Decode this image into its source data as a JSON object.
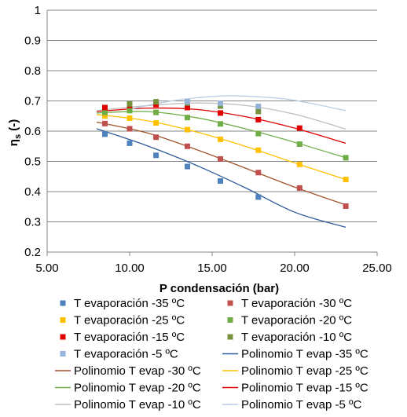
{
  "chart_data": {
    "type": "scatter",
    "xlabel": "P condensación (bar)",
    "ylabel_main": "η",
    "ylabel_sub": "s",
    "ylabel_suffix": " (-)",
    "xlim": [
      5,
      25
    ],
    "ylim": [
      0.2,
      1.0
    ],
    "x_ticks": [
      "5.00",
      "10.00",
      "15.00",
      "20.00",
      "25.00"
    ],
    "y_ticks": [
      "0.2",
      "0.3",
      "0.4",
      "0.5",
      "0.6",
      "0.7",
      "0.8",
      "0.9",
      "1"
    ],
    "grid": true,
    "legend_position": "bottom",
    "series": [
      {
        "name": "T evaporación -35 ºC",
        "marker": "square",
        "color": "#4F81BD",
        "x": [
          8.5,
          10.0,
          11.6,
          13.5,
          15.5,
          17.8
        ],
        "y": [
          0.59,
          0.56,
          0.52,
          0.483,
          0.435,
          0.382
        ]
      },
      {
        "name": "T evaporación -30 ºC",
        "marker": "square",
        "color": "#C0504D",
        "x": [
          8.5,
          10.0,
          11.6,
          13.5,
          15.5,
          17.8,
          20.3,
          23.1
        ],
        "y": [
          0.625,
          0.608,
          0.58,
          0.55,
          0.508,
          0.463,
          0.412,
          0.352
        ]
      },
      {
        "name": "T evaporación -25 ºC",
        "marker": "square",
        "color": "#FFC000",
        "x": [
          8.5,
          10.0,
          11.6,
          13.5,
          15.5,
          17.8,
          20.3,
          23.1
        ],
        "y": [
          0.65,
          0.643,
          0.627,
          0.605,
          0.573,
          0.537,
          0.49,
          0.44
        ]
      },
      {
        "name": "T evaporación -20 ºC",
        "marker": "square",
        "color": "#70AD47",
        "x": [
          8.5,
          10.0,
          11.6,
          13.5,
          15.5,
          17.8,
          20.3,
          23.1
        ],
        "y": [
          0.662,
          0.668,
          0.662,
          0.645,
          0.624,
          0.592,
          0.557,
          0.512
        ]
      },
      {
        "name": "T evaporación -15 ºC",
        "marker": "square",
        "color": "#E00000",
        "x": [
          8.5,
          10.0,
          11.6,
          13.5,
          15.5,
          17.8,
          20.3
        ],
        "y": [
          0.678,
          0.685,
          0.688,
          0.678,
          0.66,
          0.638,
          0.61
        ]
      },
      {
        "name": "T evaporación -10 ºC",
        "marker": "square",
        "color": "#77933C",
        "x": [
          10.0,
          11.6,
          13.5,
          15.5,
          17.8
        ],
        "y": [
          0.69,
          0.697,
          0.693,
          0.683,
          0.665
        ]
      },
      {
        "name": "T evaporación -5 ºC",
        "marker": "square",
        "color": "#95B3D7",
        "x": [
          13.5,
          15.5,
          17.8
        ],
        "y": [
          0.697,
          0.692,
          0.682
        ]
      },
      {
        "name": "Polinomio T evap -35 ºC",
        "marker": "line",
        "color": "#2E5C9A",
        "x": [
          8.0,
          11.0,
          14.0,
          17.0,
          20.0,
          23.1
        ],
        "y": [
          0.608,
          0.553,
          0.488,
          0.413,
          0.332,
          0.282
        ]
      },
      {
        "name": "Polinomio T evap -30 ºC",
        "marker": "line",
        "color": "#A0522D",
        "x": [
          8.0,
          11.0,
          14.0,
          17.0,
          20.0,
          23.1
        ],
        "y": [
          0.63,
          0.595,
          0.54,
          0.478,
          0.415,
          0.356
        ]
      },
      {
        "name": "Polinomio T evap -25 ºC",
        "marker": "line",
        "color": "#FFC000",
        "x": [
          8.0,
          11.0,
          14.0,
          17.0,
          20.0,
          23.1
        ],
        "y": [
          0.655,
          0.635,
          0.598,
          0.55,
          0.495,
          0.44
        ]
      },
      {
        "name": "Polinomio T evap -20 ºC",
        "marker": "line",
        "color": "#70AD47",
        "x": [
          8.0,
          11.0,
          14.0,
          17.0,
          20.0,
          23.1
        ],
        "y": [
          0.66,
          0.665,
          0.645,
          0.608,
          0.563,
          0.512
        ]
      },
      {
        "name": "Polinomio T evap -15 ºC",
        "marker": "line",
        "color": "#E00000",
        "x": [
          8.0,
          11.0,
          14.0,
          17.0,
          20.0,
          23.1
        ],
        "y": [
          0.665,
          0.676,
          0.672,
          0.648,
          0.61,
          0.56
        ]
      },
      {
        "name": "Polinomio T evap -10 ºC",
        "marker": "line",
        "color": "#C0C0C0",
        "x": [
          8.0,
          11.0,
          14.0,
          17.0,
          20.0,
          23.1
        ],
        "y": [
          0.668,
          0.684,
          0.693,
          0.685,
          0.656,
          0.607
        ]
      },
      {
        "name": "Polinomio T evap -5 ºC",
        "marker": "line",
        "color": "#B9CDE5",
        "x": [
          10.0,
          12.0,
          14.0,
          16.0,
          18.0,
          20.0,
          23.1
        ],
        "y": [
          0.672,
          0.695,
          0.71,
          0.717,
          0.713,
          0.702,
          0.668
        ]
      }
    ]
  }
}
